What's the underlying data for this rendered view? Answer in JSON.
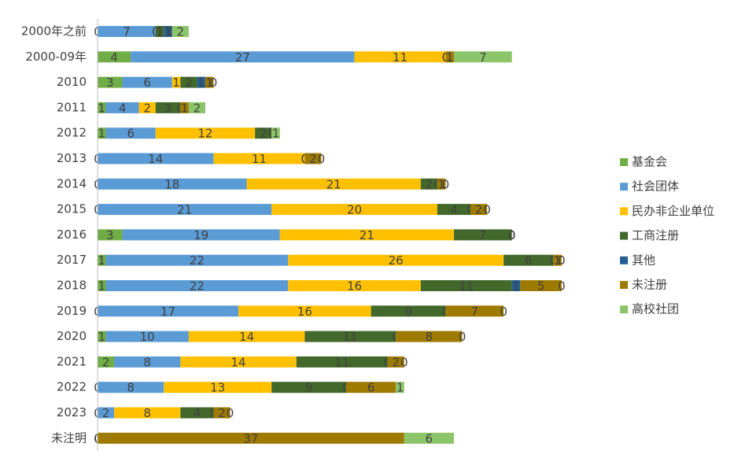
{
  "chart_data": {
    "type": "stacked-bar-horizontal",
    "categories": [
      "2000年之前",
      "2000-09年",
      "2010",
      "2011",
      "2012",
      "2013",
      "2014",
      "2015",
      "2016",
      "2017",
      "2018",
      "2019",
      "2020",
      "2021",
      "2022",
      "2023",
      "未注明"
    ],
    "series": [
      {
        "name": "基金会",
        "color": "#70ad47",
        "values": [
          0,
          4,
          3,
          1,
          1,
          0,
          0,
          0,
          3,
          1,
          1,
          0,
          1,
          2,
          0,
          0,
          0
        ]
      },
      {
        "name": "社会团体",
        "color": "#5b9bd5",
        "values": [
          7,
          27,
          6,
          4,
          6,
          14,
          18,
          21,
          19,
          22,
          22,
          17,
          10,
          8,
          8,
          2,
          0
        ]
      },
      {
        "name": "民办非企业单位",
        "color": "#ffc000",
        "values": [
          0,
          11,
          1,
          2,
          12,
          11,
          21,
          20,
          21,
          26,
          16,
          16,
          14,
          14,
          13,
          8,
          0
        ]
      },
      {
        "name": "工商注册",
        "color": "#43682b",
        "values": [
          1,
          0,
          2,
          3,
          2,
          0,
          2,
          4,
          7,
          6,
          11,
          9,
          11,
          11,
          9,
          4,
          0
        ]
      },
      {
        "name": "其他",
        "color": "#255e91",
        "values": [
          1,
          0,
          1,
          0,
          0,
          0,
          0,
          0,
          0,
          0,
          1,
          0,
          0,
          0,
          0,
          0,
          0
        ]
      },
      {
        "name": "未注册",
        "color": "#9e7a00",
        "values": [
          0,
          1,
          1,
          1,
          0,
          2,
          1,
          2,
          0,
          1,
          5,
          7,
          8,
          2,
          6,
          2,
          37
        ]
      },
      {
        "name": "高校社团",
        "color": "#8cc46a",
        "values": [
          2,
          7,
          0,
          2,
          1,
          0,
          0,
          0,
          0,
          0,
          0,
          0,
          0,
          0,
          1,
          0,
          6
        ]
      }
    ],
    "xlim": [
      0,
      60
    ],
    "legend": "right"
  }
}
